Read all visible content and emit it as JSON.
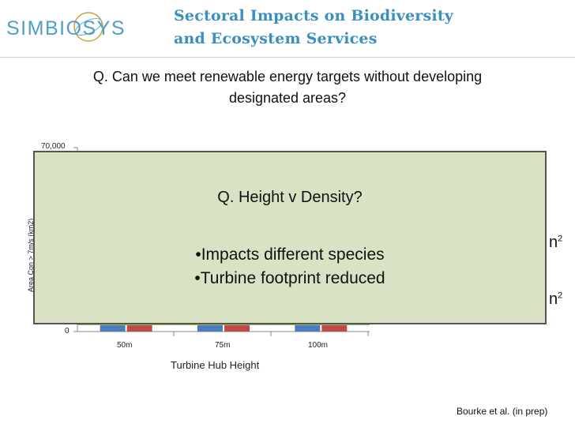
{
  "logo": {
    "text": "SIMBIOSYS"
  },
  "header": {
    "title_line1": "Sectoral Impacts on Biodiversity",
    "title_line2": "and Ecosystem Services"
  },
  "question": {
    "line1": "Q. Can we meet renewable energy targets without developing",
    "line2": "designated areas?"
  },
  "chart": {
    "y_ticks": [
      "70,000",
      "0"
    ],
    "ylabel": "Area Con > 7m/s (km2)",
    "x_ticks": [
      "50m",
      "75m",
      "100m"
    ],
    "xlabel": "Turbine Hub Height",
    "series_colors": [
      "#4a7ebb",
      "#be4b48",
      "#9bbb59"
    ]
  },
  "chart_data": {
    "type": "bar",
    "categories": [
      "50m",
      "75m",
      "100m"
    ],
    "xlabel": "Turbine Hub Height",
    "ylabel": "Area Con > 7m/s (km2)",
    "ylim": [
      0,
      70000
    ]
  },
  "overlay": {
    "title": "Q. Height v Density?",
    "bullet1": "•Impacts different species",
    "bullet2": "•Turbine footprint reduced"
  },
  "behind_text": {
    "fragment1": "n",
    "fragment2": "n",
    "sup": "2"
  },
  "citation": "Bourke et al. (in prep)"
}
